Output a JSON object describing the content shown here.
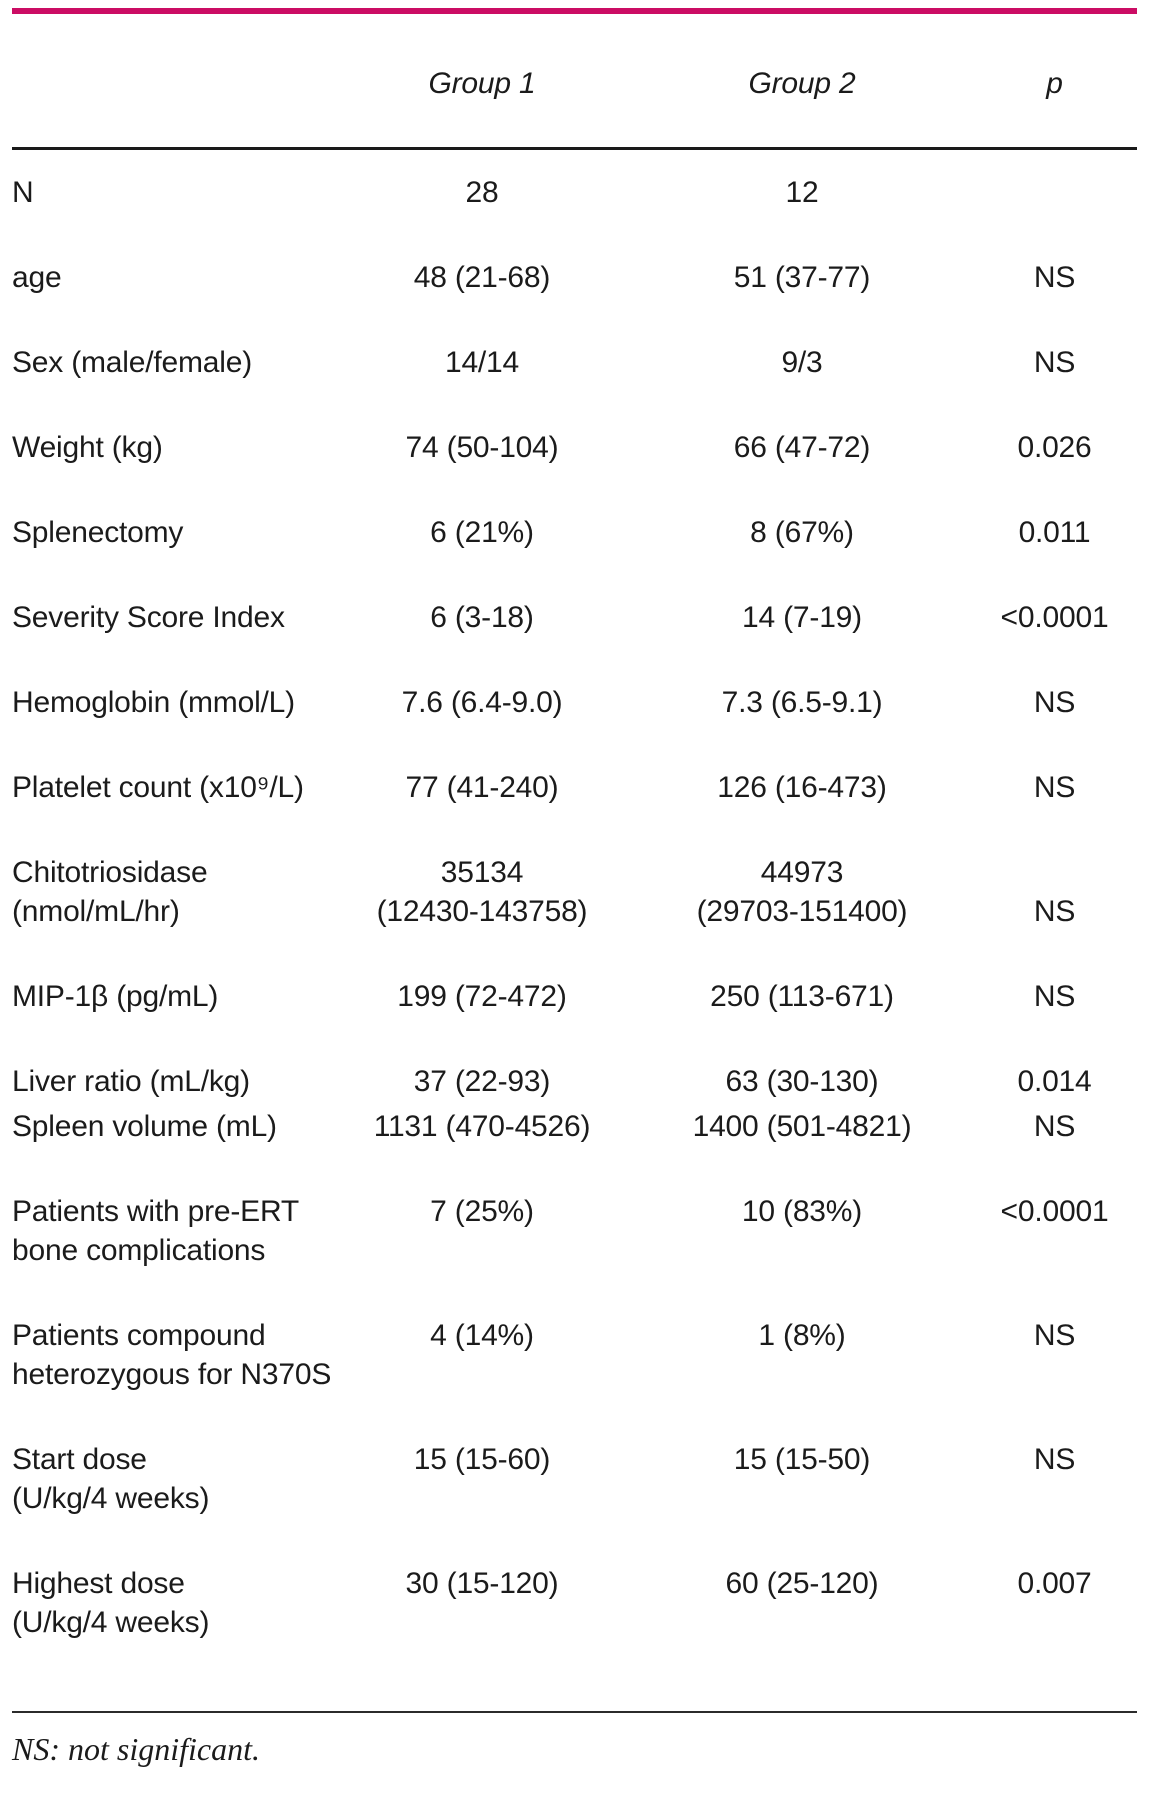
{
  "accent_color": "#cb0d64",
  "table": {
    "columns": [
      "",
      "Group 1",
      "Group 2",
      "p"
    ],
    "rows": [
      {
        "label": "N",
        "group1": "28",
        "group2": "12",
        "p": ""
      },
      {
        "label": "age",
        "group1": "48 (21-68)",
        "group2": "51 (37-77)",
        "p": "NS"
      },
      {
        "label": "Sex (male/female)",
        "group1": "14/14",
        "group2": "9/3",
        "p": "NS"
      },
      {
        "label": "Weight (kg)",
        "group1": "74 (50-104)",
        "group2": "66 (47-72)",
        "p": "0.026"
      },
      {
        "label": "Splenectomy",
        "group1": "6 (21%)",
        "group2": "8 (67%)",
        "p": "0.011"
      },
      {
        "label": "Severity Score Index",
        "group1": "6 (3-18)",
        "group2": "14 (7-19)",
        "p": "<0.0001"
      },
      {
        "label": "Hemoglobin (mmol/L)",
        "group1": "7.6 (6.4-9.0)",
        "group2": "7.3 (6.5-9.1)",
        "p": "NS"
      },
      {
        "label": "Platelet count (x10⁹/L)",
        "group1": "77 (41-240)",
        "group2": "126 (16-473)",
        "p": "NS"
      },
      {
        "label": "Chitotriosidase\n(nmol/mL/hr)",
        "group1": "35134\n(12430-143758)",
        "group2": "44973\n(29703-151400)",
        "p": "NS"
      },
      {
        "label": "MIP-1β (pg/mL)",
        "group1": "199 (72-472)",
        "group2": "250 (113-671)",
        "p": "NS"
      },
      {
        "label": "Liver ratio (mL/kg)",
        "group1": "37 (22-93)",
        "group2": "63 (30-130)",
        "p": "0.014"
      },
      {
        "label": "Spleen volume (mL)",
        "group1": "1131 (470-4526)",
        "group2": "1400 (501-4821)",
        "p": "NS"
      },
      {
        "label": "Patients with pre-ERT\nbone complications",
        "group1": "7 (25%)",
        "group2": "10 (83%)",
        "p": "<0.0001"
      },
      {
        "label": "Patients compound\nheterozygous for N370S",
        "group1": "4 (14%)",
        "group2": "1 (8%)",
        "p": "NS"
      },
      {
        "label": "Start dose\n(U/kg/4 weeks)",
        "group1": "15 (15-60)",
        "group2": "15 (15-50)",
        "p": "NS"
      },
      {
        "label": "Highest dose\n(U/kg/4 weeks)",
        "group1": "30 (15-120)",
        "group2": "60 (25-120)",
        "p": "0.007"
      }
    ],
    "footnote": "NS: not significant."
  }
}
